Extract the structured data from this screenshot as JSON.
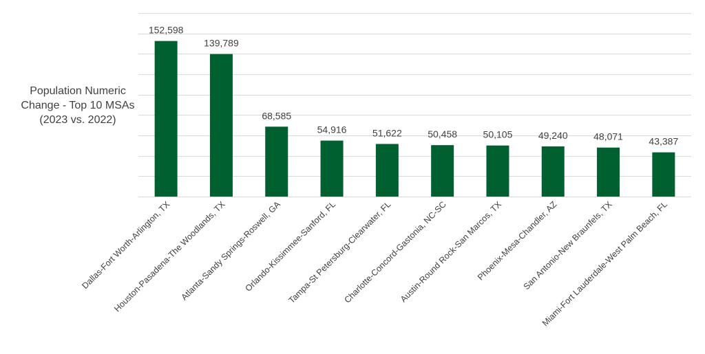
{
  "chart_data": {
    "type": "bar",
    "title": "",
    "ylabel_lines": [
      "Population Numeric",
      "Change - Top 10 MSAs",
      "(2023 vs. 2022)"
    ],
    "xlabel": "",
    "categories": [
      "Dallas-Fort Worth-Arlington, TX",
      "Houston-Pasadena-The Woodlands, TX",
      "Atlanta-Sandy Springs-Roswell, GA",
      "Orlando-Kissimmee-Sanford, FL",
      "Tampa-St Petersburg-Clearwater, FL",
      "Charlotte-Concord-Gastonia, NC-SC",
      "Austin-Round Rock-San Marcos, TX",
      "Phoenix-Mesa-Chandler, AZ",
      "San Antonio-New Braunfels, TX",
      "Miami-Fort Lauderdale-West Palm Beach, FL"
    ],
    "values": [
      152598,
      139789,
      68585,
      54916,
      51622,
      50458,
      50105,
      49240,
      48071,
      43387
    ],
    "data_labels": [
      "152,598",
      "139,789",
      "68,585",
      "54,916",
      "51,622",
      "50,458",
      "50,105",
      "49,240",
      "48,071",
      "43,387"
    ],
    "ylim": [
      0,
      180000
    ],
    "grid": true,
    "legend": "none",
    "colors": {
      "bar": "#00602f",
      "grid": "#d9d9d9",
      "text": "#404040"
    }
  }
}
